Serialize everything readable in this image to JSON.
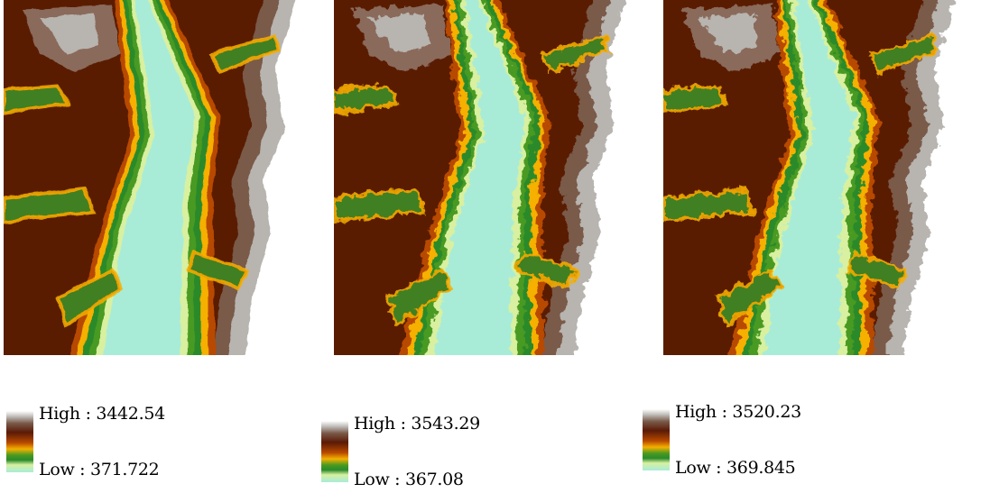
{
  "panels": [
    {
      "legend": {
        "high_label": "High : 3442.54",
        "low_label": "Low : 371.722"
      },
      "variant": 0
    },
    {
      "legend": {
        "high_label": "High : 3543.29",
        "low_label": "Low : 367.08"
      },
      "variant": 1
    },
    {
      "legend": {
        "high_label": "High : 3520.23",
        "low_label": "Low : 369.845"
      },
      "variant": 2
    }
  ],
  "colors": {
    "ramp": [
      "#ffffff",
      "#b8b4b0",
      "#7a5a48",
      "#5a1a06",
      "#b84a00",
      "#f5b000",
      "#4a9a20",
      "#2a8a2a",
      "#d8f0a0",
      "#a8ecd8"
    ]
  }
}
